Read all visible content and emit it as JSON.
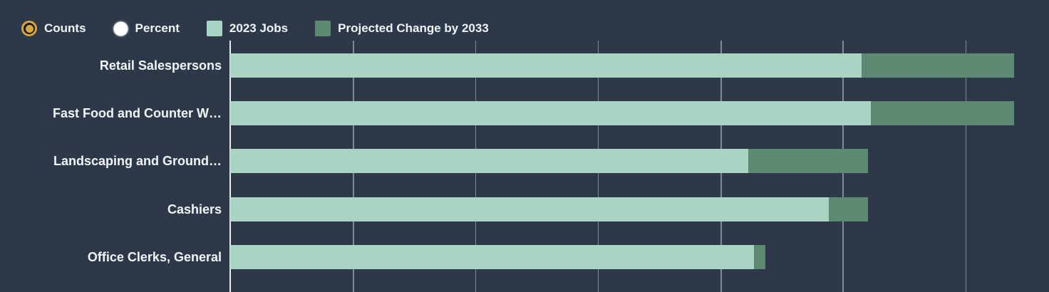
{
  "controls": {
    "counts_label": "Counts",
    "percent_label": "Percent",
    "selected_mode": "Counts"
  },
  "legend": [
    {
      "label": "2023 Jobs",
      "color": "#a9d4c3"
    },
    {
      "label": "Projected Change by 2033",
      "color": "#5d8a73"
    }
  ],
  "colors": {
    "background": "#2d3949",
    "bar_2023_jobs": "#a9d4c3",
    "bar_projected_change": "#5d8a73",
    "gridline": "#7e8897",
    "axis_line": "#e7ecf1",
    "text": "#f2f6f9",
    "radio_selected_accent": "#d7a33f",
    "radio_unselected": "#ffffff"
  },
  "chart_data": {
    "type": "bar",
    "orientation": "horizontal",
    "stacked": true,
    "title": "",
    "xlabel": "",
    "ylabel": "",
    "legend_position": "top",
    "grid": true,
    "axis_tick_labels_visible": false,
    "value_units": "percent of visible axis width (numeric axis labels not shown in image)",
    "categories": [
      "Retail Salespersons",
      "Fast Food and Counter W…",
      "Landscaping and Ground…",
      "Cashiers",
      "Office Clerks, General"
    ],
    "series": [
      {
        "name": "2023 Jobs",
        "color": "#a9d4c3",
        "values": [
          77.1,
          78.2,
          63.3,
          73.1,
          64.0
        ]
      },
      {
        "name": "Projected Change by 2033",
        "color": "#5d8a73",
        "values": [
          18.6,
          17.5,
          14.6,
          4.8,
          1.4
        ]
      }
    ],
    "gridlines_pct": [
      15.0,
      29.9,
      44.9,
      59.9,
      74.8,
      89.8
    ]
  }
}
